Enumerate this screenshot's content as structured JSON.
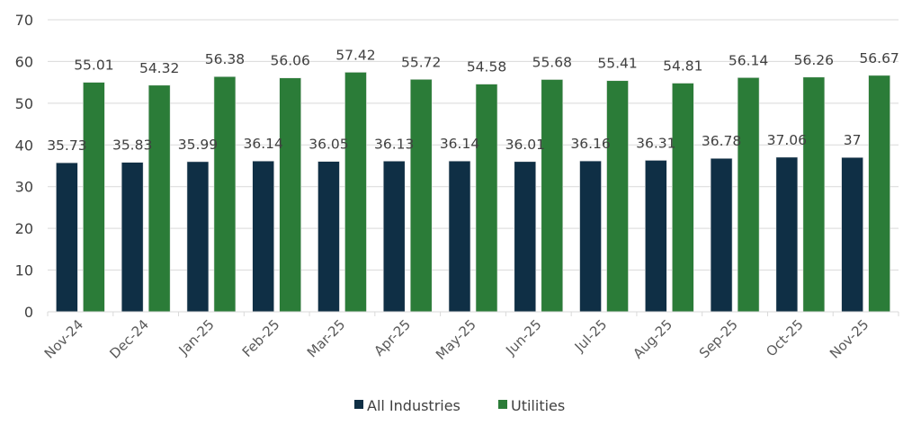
{
  "chart_data": {
    "type": "bar",
    "title": "",
    "xlabel": "",
    "ylabel": "",
    "ylim": [
      0,
      70
    ],
    "yticks": [
      0,
      10,
      20,
      30,
      40,
      50,
      60,
      70
    ],
    "grid": true,
    "legend_position": "bottom",
    "categories": [
      "Nov-24",
      "Dec-24",
      "Jan-25",
      "Feb-25",
      "Mar-25",
      "Apr-25",
      "May-25",
      "Jun-25",
      "Jul-25",
      "Aug-25",
      "Sep-25",
      "Oct-25",
      "Nov-25"
    ],
    "series": [
      {
        "name": "All Industries",
        "color": "#0f2f45",
        "values": [
          35.73,
          35.83,
          35.99,
          36.14,
          36.05,
          36.13,
          36.14,
          36.01,
          36.16,
          36.31,
          36.78,
          37.06,
          37
        ],
        "labels": [
          "35.73",
          "35.83",
          "35.99",
          "36.14",
          "36.05",
          "36.13",
          "36.14",
          "36.01",
          "36.16",
          "36.31",
          "36.78",
          "37.06",
          "37"
        ]
      },
      {
        "name": "Utilities",
        "color": "#2b7c38",
        "values": [
          55.01,
          54.32,
          56.38,
          56.06,
          57.42,
          55.72,
          54.58,
          55.68,
          55.41,
          54.81,
          56.14,
          56.26,
          56.67
        ],
        "labels": [
          "55.01",
          "54.32",
          "56.38",
          "56.06",
          "57.42",
          "55.72",
          "54.58",
          "55.68",
          "55.41",
          "54.81",
          "56.14",
          "56.26",
          "56.67"
        ]
      }
    ]
  }
}
